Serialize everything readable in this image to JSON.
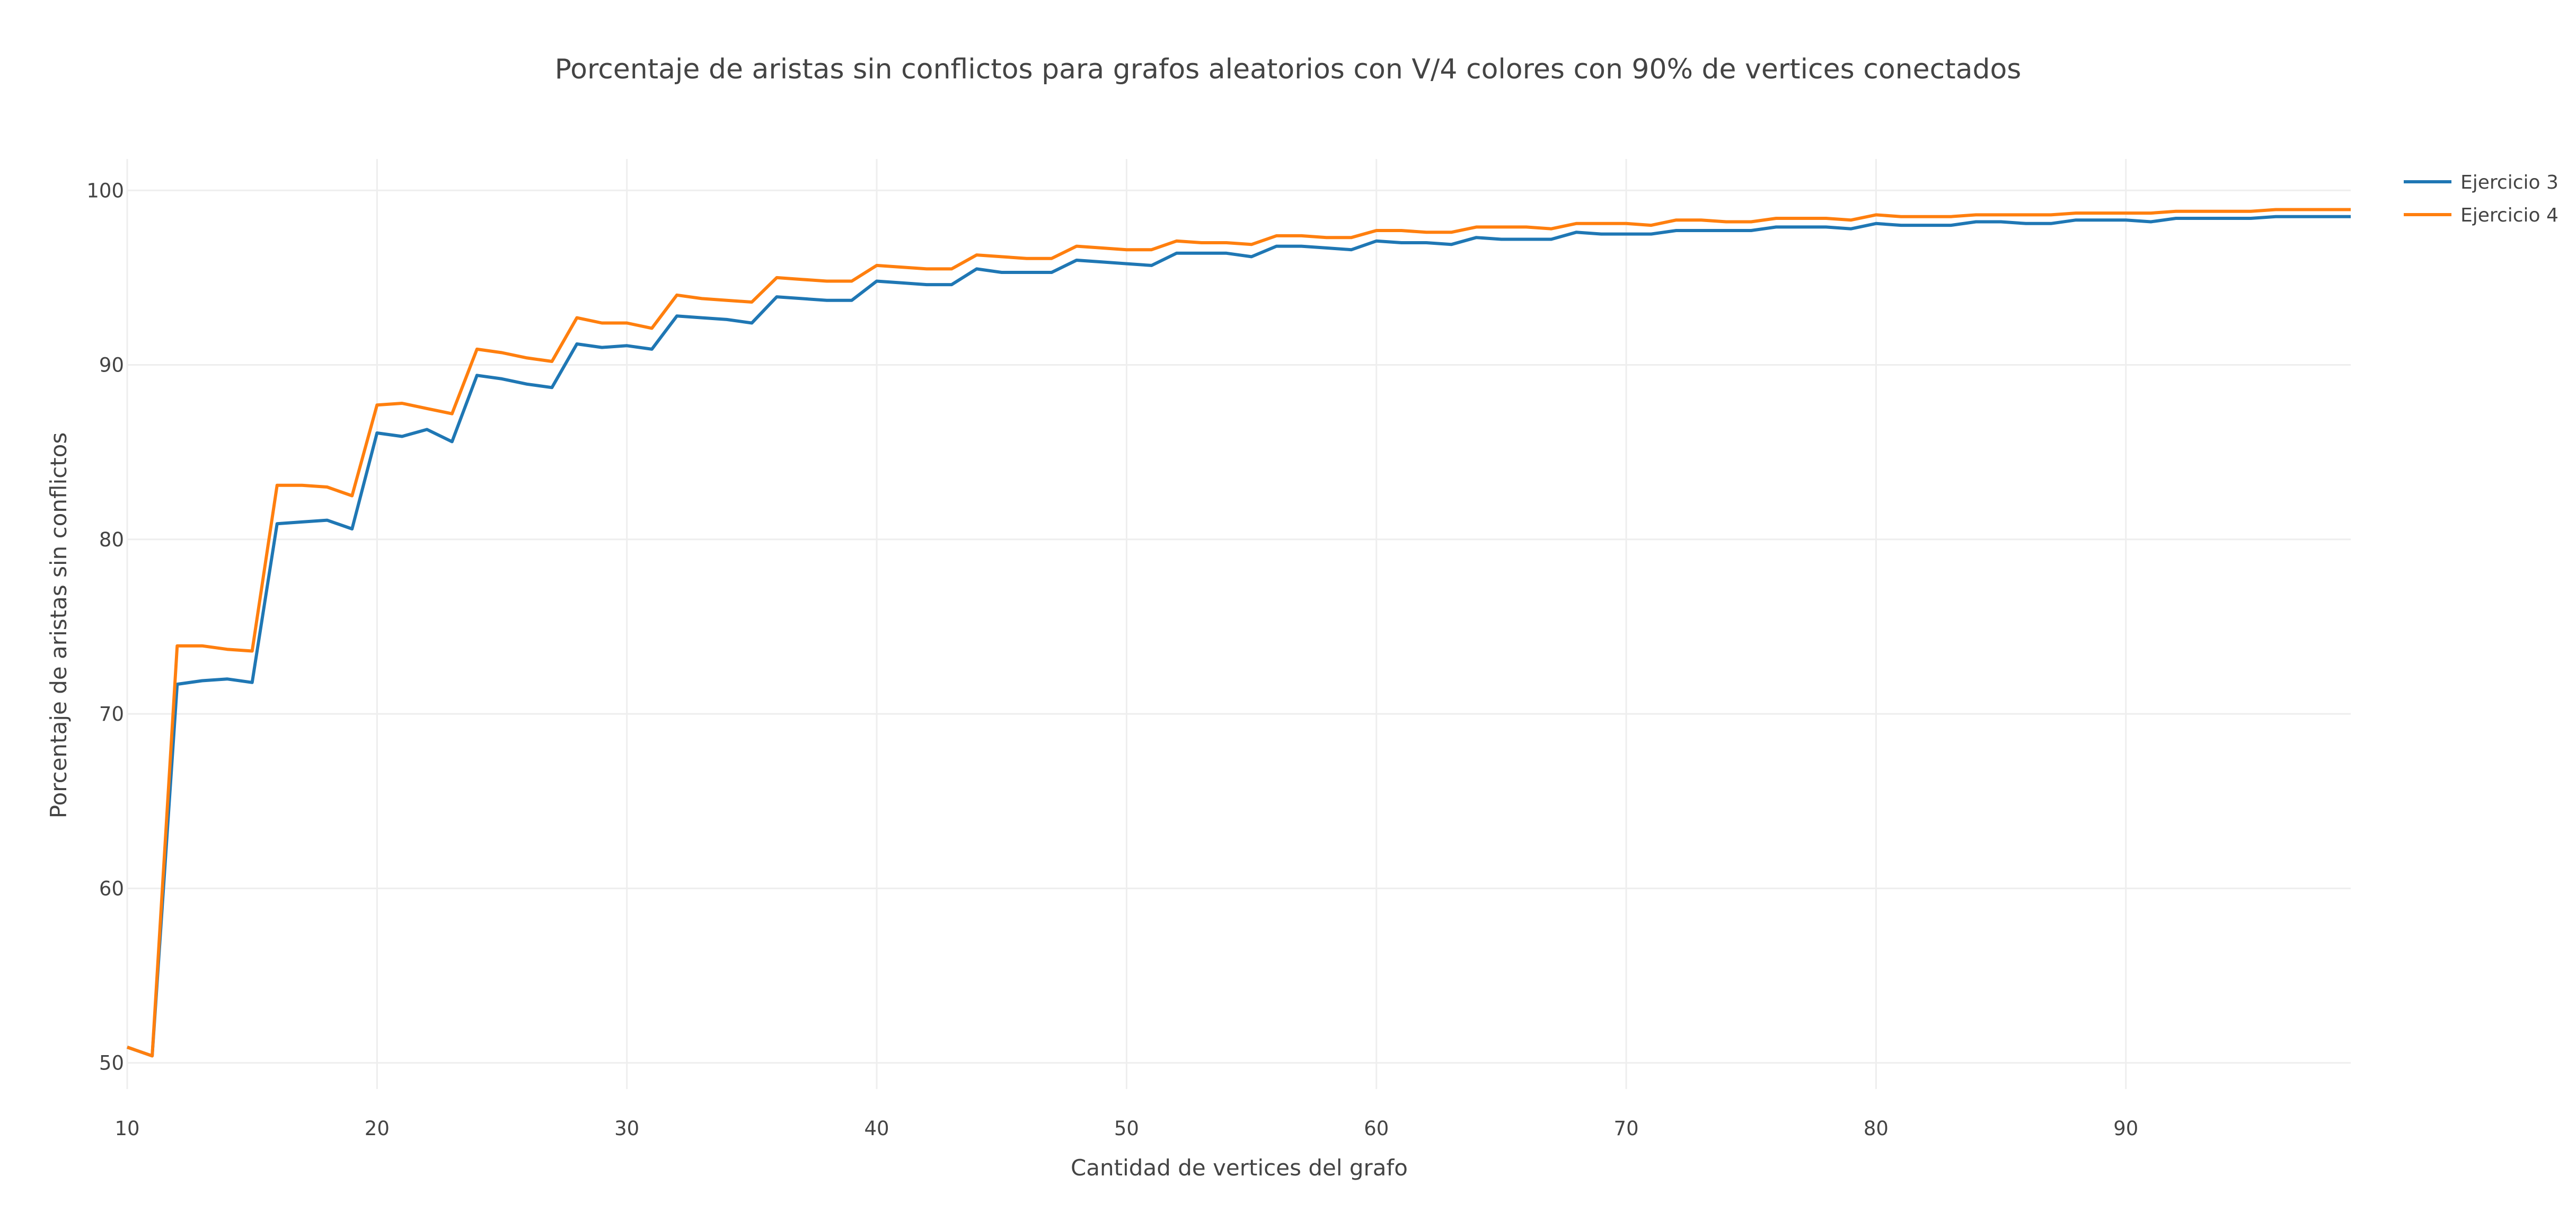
{
  "chart_data": {
    "type": "line",
    "title": "Porcentaje de aristas sin conflictos para grafos aleatorios con V/4 colores con 90% de vertices conectados",
    "xlabel": "Cantidad de vertices del grafo",
    "ylabel": "Porcentaje de aristas sin conflictos",
    "xlim": [
      10,
      99
    ],
    "ylim": [
      48.5,
      101.8
    ],
    "x_ticks": [
      10,
      20,
      30,
      40,
      50,
      60,
      70,
      80,
      90
    ],
    "y_ticks": [
      50,
      60,
      70,
      80,
      90,
      100
    ],
    "grid": true,
    "legend_position": "top-right",
    "x": [
      10,
      11,
      12,
      13,
      14,
      15,
      16,
      17,
      18,
      19,
      20,
      21,
      22,
      23,
      24,
      25,
      26,
      27,
      28,
      29,
      30,
      31,
      32,
      33,
      34,
      35,
      36,
      37,
      38,
      39,
      40,
      41,
      42,
      43,
      44,
      45,
      46,
      47,
      48,
      49,
      50,
      51,
      52,
      53,
      54,
      55,
      56,
      57,
      58,
      59,
      60,
      61,
      62,
      63,
      64,
      65,
      66,
      67,
      68,
      69,
      70,
      71,
      72,
      73,
      74,
      75,
      76,
      77,
      78,
      79,
      80,
      81,
      82,
      83,
      84,
      85,
      86,
      87,
      88,
      89,
      90,
      91,
      92,
      93,
      94,
      95,
      96,
      97,
      98,
      99
    ],
    "series": [
      {
        "name": "Ejercicio 3",
        "color": "#1f77b4",
        "values": [
          50.9,
          50.4,
          71.7,
          71.9,
          72.0,
          71.8,
          80.9,
          81.0,
          81.1,
          80.6,
          86.1,
          85.9,
          86.3,
          85.6,
          89.4,
          89.2,
          88.9,
          88.7,
          91.2,
          91.0,
          91.1,
          90.9,
          92.8,
          92.7,
          92.6,
          92.4,
          93.9,
          93.8,
          93.7,
          93.7,
          94.8,
          94.7,
          94.6,
          94.6,
          95.5,
          95.3,
          95.3,
          95.3,
          96.0,
          95.9,
          95.8,
          95.7,
          96.4,
          96.4,
          96.4,
          96.2,
          96.8,
          96.8,
          96.7,
          96.6,
          97.1,
          97.0,
          97.0,
          96.9,
          97.3,
          97.2,
          97.2,
          97.2,
          97.6,
          97.5,
          97.5,
          97.5,
          97.7,
          97.7,
          97.7,
          97.7,
          97.9,
          97.9,
          97.9,
          97.8,
          98.1,
          98.0,
          98.0,
          98.0,
          98.2,
          98.2,
          98.1,
          98.1,
          98.3,
          98.3,
          98.3,
          98.2,
          98.4,
          98.4,
          98.4,
          98.4,
          98.5,
          98.5,
          98.5,
          98.5
        ]
      },
      {
        "name": "Ejercicio 4",
        "color": "#ff7f0e",
        "values": [
          50.9,
          50.4,
          73.9,
          73.9,
          73.7,
          73.6,
          83.1,
          83.1,
          83.0,
          82.5,
          87.7,
          87.8,
          87.5,
          87.2,
          90.9,
          90.7,
          90.4,
          90.2,
          92.7,
          92.4,
          92.4,
          92.1,
          94.0,
          93.8,
          93.7,
          93.6,
          95.0,
          94.9,
          94.8,
          94.8,
          95.7,
          95.6,
          95.5,
          95.5,
          96.3,
          96.2,
          96.1,
          96.1,
          96.8,
          96.7,
          96.6,
          96.6,
          97.1,
          97.0,
          97.0,
          96.9,
          97.4,
          97.4,
          97.3,
          97.3,
          97.7,
          97.7,
          97.6,
          97.6,
          97.9,
          97.9,
          97.9,
          97.8,
          98.1,
          98.1,
          98.1,
          98.0,
          98.3,
          98.3,
          98.2,
          98.2,
          98.4,
          98.4,
          98.4,
          98.3,
          98.6,
          98.5,
          98.5,
          98.5,
          98.6,
          98.6,
          98.6,
          98.6,
          98.7,
          98.7,
          98.7,
          98.7,
          98.8,
          98.8,
          98.8,
          98.8,
          98.9,
          98.9,
          98.9,
          98.9
        ]
      }
    ]
  }
}
